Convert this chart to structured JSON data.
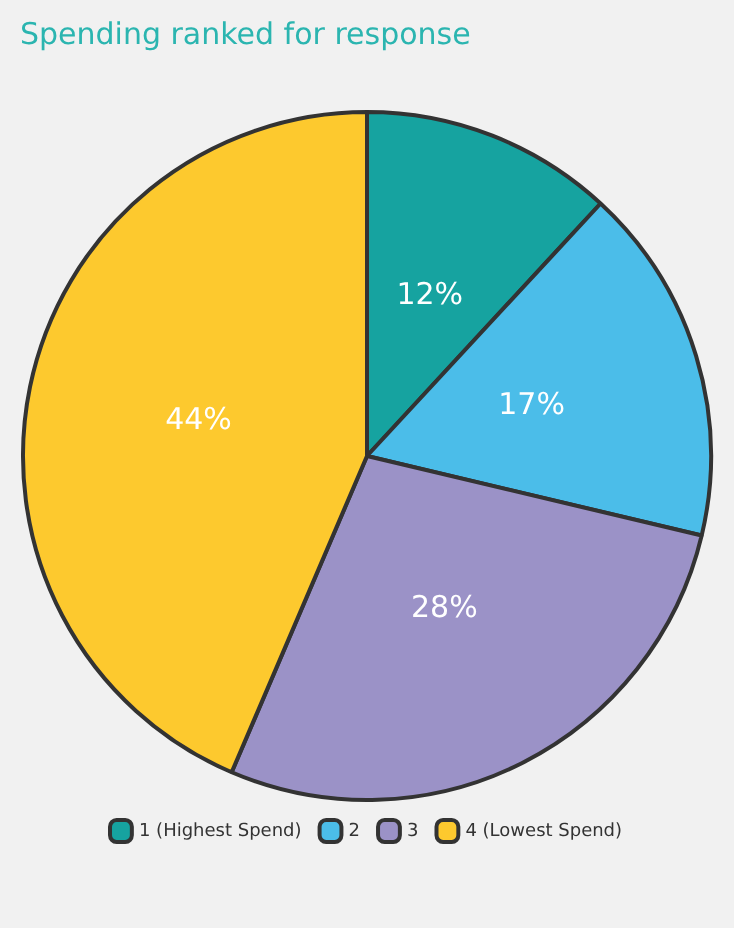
{
  "chart_data": {
    "type": "pie",
    "title": "Spending ranked for response",
    "categories": [
      "1 (Highest Spend)",
      "2",
      "3",
      "4 (Lowest Spend)"
    ],
    "values": [
      12,
      17,
      28,
      44
    ],
    "colors": [
      "#16a3a0",
      "#4bbde9",
      "#9b92c7",
      "#fdc92e"
    ],
    "value_labels": [
      "12%",
      "17%",
      "28%",
      "44%"
    ],
    "legend": "bottom"
  }
}
